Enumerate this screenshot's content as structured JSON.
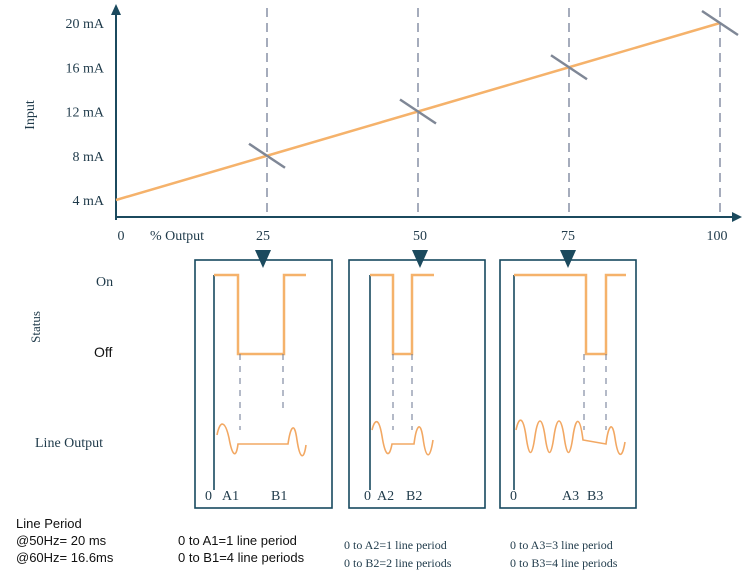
{
  "chart_data": {
    "type": "line",
    "ylabel": "Input",
    "xlabel": "% Output",
    "x_ticks": [
      "0",
      "25",
      "50",
      "75",
      "100"
    ],
    "y_ticks": [
      "4 mA",
      "8 mA",
      "12 mA",
      "16 mA",
      "20 mA"
    ],
    "x_range": [
      0,
      100
    ],
    "y_range": [
      4,
      20
    ],
    "series": [
      {
        "x": [
          0,
          25,
          50,
          75,
          100
        ],
        "y": [
          4,
          8,
          12,
          16,
          20
        ]
      }
    ],
    "markers_at_x": [
      25,
      50,
      75,
      100
    ]
  },
  "status": {
    "label": "Status",
    "on": "On",
    "off": "Off",
    "line_output": "Line Output"
  },
  "panels": [
    {
      "start": "0",
      "a": "A1",
      "b": "B1"
    },
    {
      "start": "0",
      "a": "A2",
      "b": "B2"
    },
    {
      "start": "0",
      "a": "A3",
      "b": "B3"
    }
  ],
  "notes": {
    "line_period_title": "Line Period",
    "line_period_50": "@50Hz= 20 ms",
    "line_period_60": "@60Hz= 16.6ms",
    "panel1_a": "0 to A1=1 line period",
    "panel1_b": "0 to B1=4 line periods",
    "panel2_a": "0 to A2=1 line period",
    "panel2_b": "0 to B2=2 line periods",
    "panel3_a": "0 to A3=3 line period",
    "panel3_b": "0 to B3=4 line periods"
  },
  "colors": {
    "axis": "#1b4a5e",
    "signal": "#f5b26b",
    "dashed": "#6a7690",
    "marker": "#7f8796"
  }
}
